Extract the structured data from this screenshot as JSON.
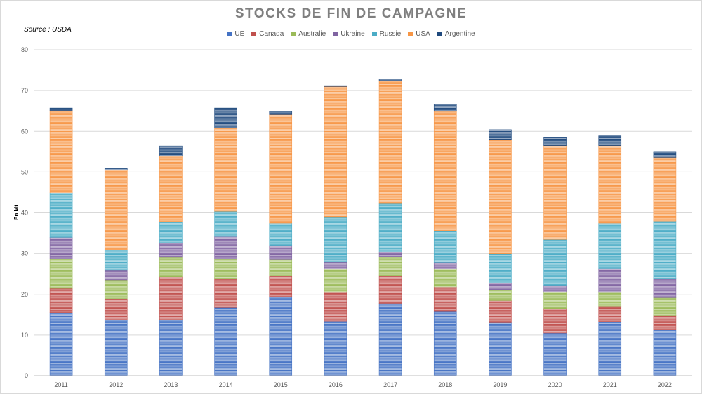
{
  "chart_data": {
    "type": "bar",
    "stacked": true,
    "title": "STOCKS DE FIN DE CAMPAGNE",
    "source": "Source : USDA",
    "ylabel": "En Mt",
    "xlabel": "",
    "ylim": [
      0,
      80
    ],
    "yticks": [
      0,
      10,
      20,
      30,
      40,
      50,
      60,
      70,
      80
    ],
    "grid": true,
    "legend_position": "top",
    "categories": [
      "2011",
      "2012",
      "2013",
      "2014",
      "2015",
      "2016",
      "2017",
      "2018",
      "2019",
      "2020",
      "2021",
      "2022"
    ],
    "series": [
      {
        "name": "UE",
        "color": "#4472c4",
        "values": [
          15.5,
          13.7,
          13.8,
          16.8,
          19.5,
          13.4,
          17.8,
          15.8,
          13.0,
          10.5,
          13.2,
          11.3
        ]
      },
      {
        "name": "Canada",
        "color": "#c0504d",
        "values": [
          6.0,
          5.1,
          10.5,
          7.0,
          5.0,
          7.1,
          6.8,
          5.9,
          5.5,
          5.9,
          3.8,
          3.4
        ]
      },
      {
        "name": "Australie",
        "color": "#9bbb59",
        "values": [
          7.2,
          4.6,
          4.8,
          4.8,
          4.0,
          5.7,
          4.6,
          4.6,
          2.7,
          4.2,
          3.5,
          4.5
        ]
      },
      {
        "name": "Ukraine",
        "color": "#8064a2",
        "values": [
          5.3,
          2.6,
          3.6,
          5.6,
          3.4,
          1.7,
          1.2,
          1.5,
          1.6,
          1.5,
          5.9,
          4.6
        ]
      },
      {
        "name": "Russie",
        "color": "#4bacc6",
        "values": [
          10.9,
          5.0,
          5.1,
          6.2,
          5.6,
          11.0,
          11.9,
          7.7,
          7.2,
          11.4,
          11.1,
          14.2
        ]
      },
      {
        "name": "USA",
        "color": "#f79646",
        "values": [
          20.2,
          19.5,
          16.1,
          20.4,
          26.6,
          32.1,
          30.1,
          29.4,
          28.0,
          23.0,
          19.0,
          15.6
        ]
      },
      {
        "name": "Argentine",
        "color": "#1f497d",
        "values": [
          0.6,
          0.4,
          2.5,
          4.9,
          0.8,
          0.2,
          0.4,
          1.8,
          2.4,
          2.0,
          2.4,
          1.3
        ]
      }
    ]
  }
}
